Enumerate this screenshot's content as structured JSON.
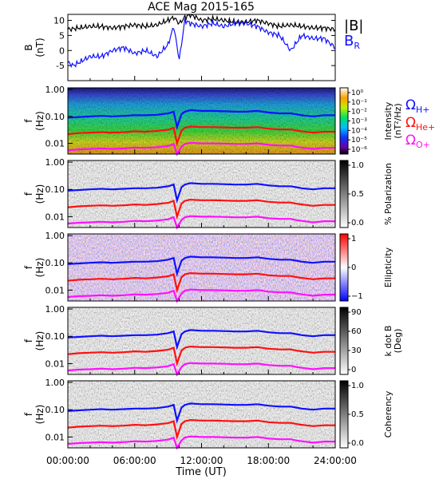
{
  "title": "ACE Mag 2015-165",
  "xlabel": "Time (UT)",
  "x_ticks": [
    "00:00:00",
    "06:00:00",
    "12:00:00",
    "18:00:00",
    "24:00:00"
  ],
  "colors": {
    "total": "#000000",
    "br": "#1010ff",
    "h": "#1010ff",
    "he": "#ff1010",
    "o": "#ff10ff"
  },
  "legend_b": {
    "total": "|B|",
    "radial": "B",
    "radial_sub": "R"
  },
  "gyro_labels": [
    {
      "sym": "Ω",
      "sub": "H+",
      "color": "#1010ff"
    },
    {
      "sym": "Ω",
      "sub": "He+",
      "color": "#ff1010"
    },
    {
      "sym": "Ω",
      "sub": "O+",
      "color": "#ff10ff"
    }
  ],
  "chart_data": [
    {
      "type": "line",
      "ylabel": "B",
      "ylabel2": "(nT)",
      "ylim": [
        -10,
        12
      ],
      "y_ticks": [
        "10",
        "5",
        "0",
        "-5"
      ],
      "x_range_hours": [
        0,
        24
      ],
      "series": [
        {
          "name": "|B|",
          "color": "#000000",
          "x": [
            0,
            1,
            2,
            3,
            4,
            5,
            6,
            7,
            8,
            9,
            9.5,
            10,
            10.5,
            11,
            12,
            13,
            14,
            15,
            16,
            17,
            18,
            19,
            20,
            21,
            22,
            23,
            24
          ],
          "values": [
            7,
            7.5,
            8,
            8,
            7.5,
            8,
            8.5,
            8,
            8.5,
            10,
            11,
            9,
            11,
            12,
            10,
            10.5,
            10,
            9.5,
            9.5,
            10,
            9,
            8,
            8.5,
            8,
            7.5,
            7.5,
            7
          ]
        },
        {
          "name": "B_R",
          "color": "#1010ff",
          "x": [
            0,
            0.5,
            1,
            2,
            3,
            4,
            5,
            6,
            7,
            8,
            9,
            9.5,
            10,
            10.5,
            11,
            12,
            13,
            14,
            15,
            16,
            17,
            18,
            19,
            20,
            21,
            22,
            23,
            24
          ],
          "values": [
            -4,
            -5,
            -4,
            -2,
            -2,
            0,
            1,
            -1,
            0,
            -2,
            2,
            8,
            -3,
            10,
            9,
            8,
            9,
            8,
            9,
            9,
            8,
            6,
            5,
            0,
            5,
            4,
            4,
            1
          ]
        }
      ]
    },
    {
      "type": "heatmap",
      "ylabel": "f",
      "ylabel2": "(Hz)",
      "y_ticks": [
        "1.00",
        "0.10",
        "0.01"
      ],
      "colorbar": {
        "label": "Intensity",
        "label2": "(nT²/Hz)",
        "ticks": [
          "10⁰",
          "10⁻¹",
          "10⁻²",
          "10⁻³",
          "10⁻⁴",
          "10⁻⁵",
          "10⁻⁶"
        ],
        "scale": "rainbow"
      },
      "overlay": "gyro"
    },
    {
      "type": "heatmap",
      "ylabel": "f",
      "ylabel2": "(Hz)",
      "y_ticks": [
        "1.00",
        "0.10",
        "0.01"
      ],
      "colorbar": {
        "label": "% Polarization",
        "label2": "",
        "ticks": [
          "1.0",
          "0.5",
          "0.0"
        ],
        "scale": "gray"
      },
      "overlay": "gyro"
    },
    {
      "type": "heatmap",
      "ylabel": "f",
      "ylabel2": "(Hz)",
      "y_ticks": [
        "1.00",
        "0.10",
        "0.01"
      ],
      "colorbar": {
        "label": "Ellipticity",
        "label2": "",
        "ticks": [
          "1",
          "0",
          "−1"
        ],
        "scale": "bwr"
      },
      "overlay": "gyro"
    },
    {
      "type": "heatmap",
      "ylabel": "f",
      "ylabel2": "(Hz)",
      "y_ticks": [
        "1.00",
        "0.10",
        "0.01"
      ],
      "colorbar": {
        "label": "k dot B",
        "label2": "(Deg)",
        "ticks": [
          "90",
          "60",
          "30",
          "0"
        ],
        "scale": "gray"
      },
      "overlay": "gyro"
    },
    {
      "type": "heatmap",
      "ylabel": "f",
      "ylabel2": "(Hz)",
      "y_ticks": [
        "1.00",
        "0.10",
        "0.01"
      ],
      "colorbar": {
        "label": "Coherency",
        "label2": "",
        "ticks": [
          "1.0",
          "0.5",
          "0.0"
        ],
        "scale": "gray"
      },
      "overlay": "gyro"
    }
  ],
  "gyro_curves": {
    "x": [
      0,
      1,
      2,
      3,
      4,
      5,
      6,
      7,
      8,
      9,
      9.5,
      9.8,
      10.2,
      10.5,
      11,
      12,
      13,
      14,
      15,
      16,
      17,
      18,
      19,
      20,
      20.5,
      21,
      22,
      23,
      24
    ],
    "H+": [
      0.09,
      0.095,
      0.1,
      0.105,
      0.1,
      0.105,
      0.11,
      0.11,
      0.115,
      0.13,
      0.15,
      0.04,
      0.12,
      0.15,
      0.17,
      0.16,
      0.16,
      0.155,
      0.15,
      0.15,
      0.16,
      0.14,
      0.13,
      0.13,
      0.12,
      0.11,
      0.1,
      0.11,
      0.11
    ],
    "He+": [
      0.022,
      0.024,
      0.025,
      0.026,
      0.025,
      0.026,
      0.028,
      0.027,
      0.029,
      0.032,
      0.038,
      0.01,
      0.03,
      0.038,
      0.042,
      0.04,
      0.04,
      0.039,
      0.038,
      0.038,
      0.04,
      0.035,
      0.033,
      0.033,
      0.03,
      0.028,
      0.025,
      0.027,
      0.027
    ],
    "O+": [
      0.0056,
      0.006,
      0.0062,
      0.0065,
      0.0062,
      0.0065,
      0.007,
      0.0068,
      0.0072,
      0.008,
      0.0095,
      0.0026,
      0.0075,
      0.0095,
      0.0105,
      0.01,
      0.01,
      0.0098,
      0.0095,
      0.0095,
      0.01,
      0.0088,
      0.0083,
      0.0083,
      0.0075,
      0.007,
      0.0062,
      0.0068,
      0.0068
    ]
  }
}
